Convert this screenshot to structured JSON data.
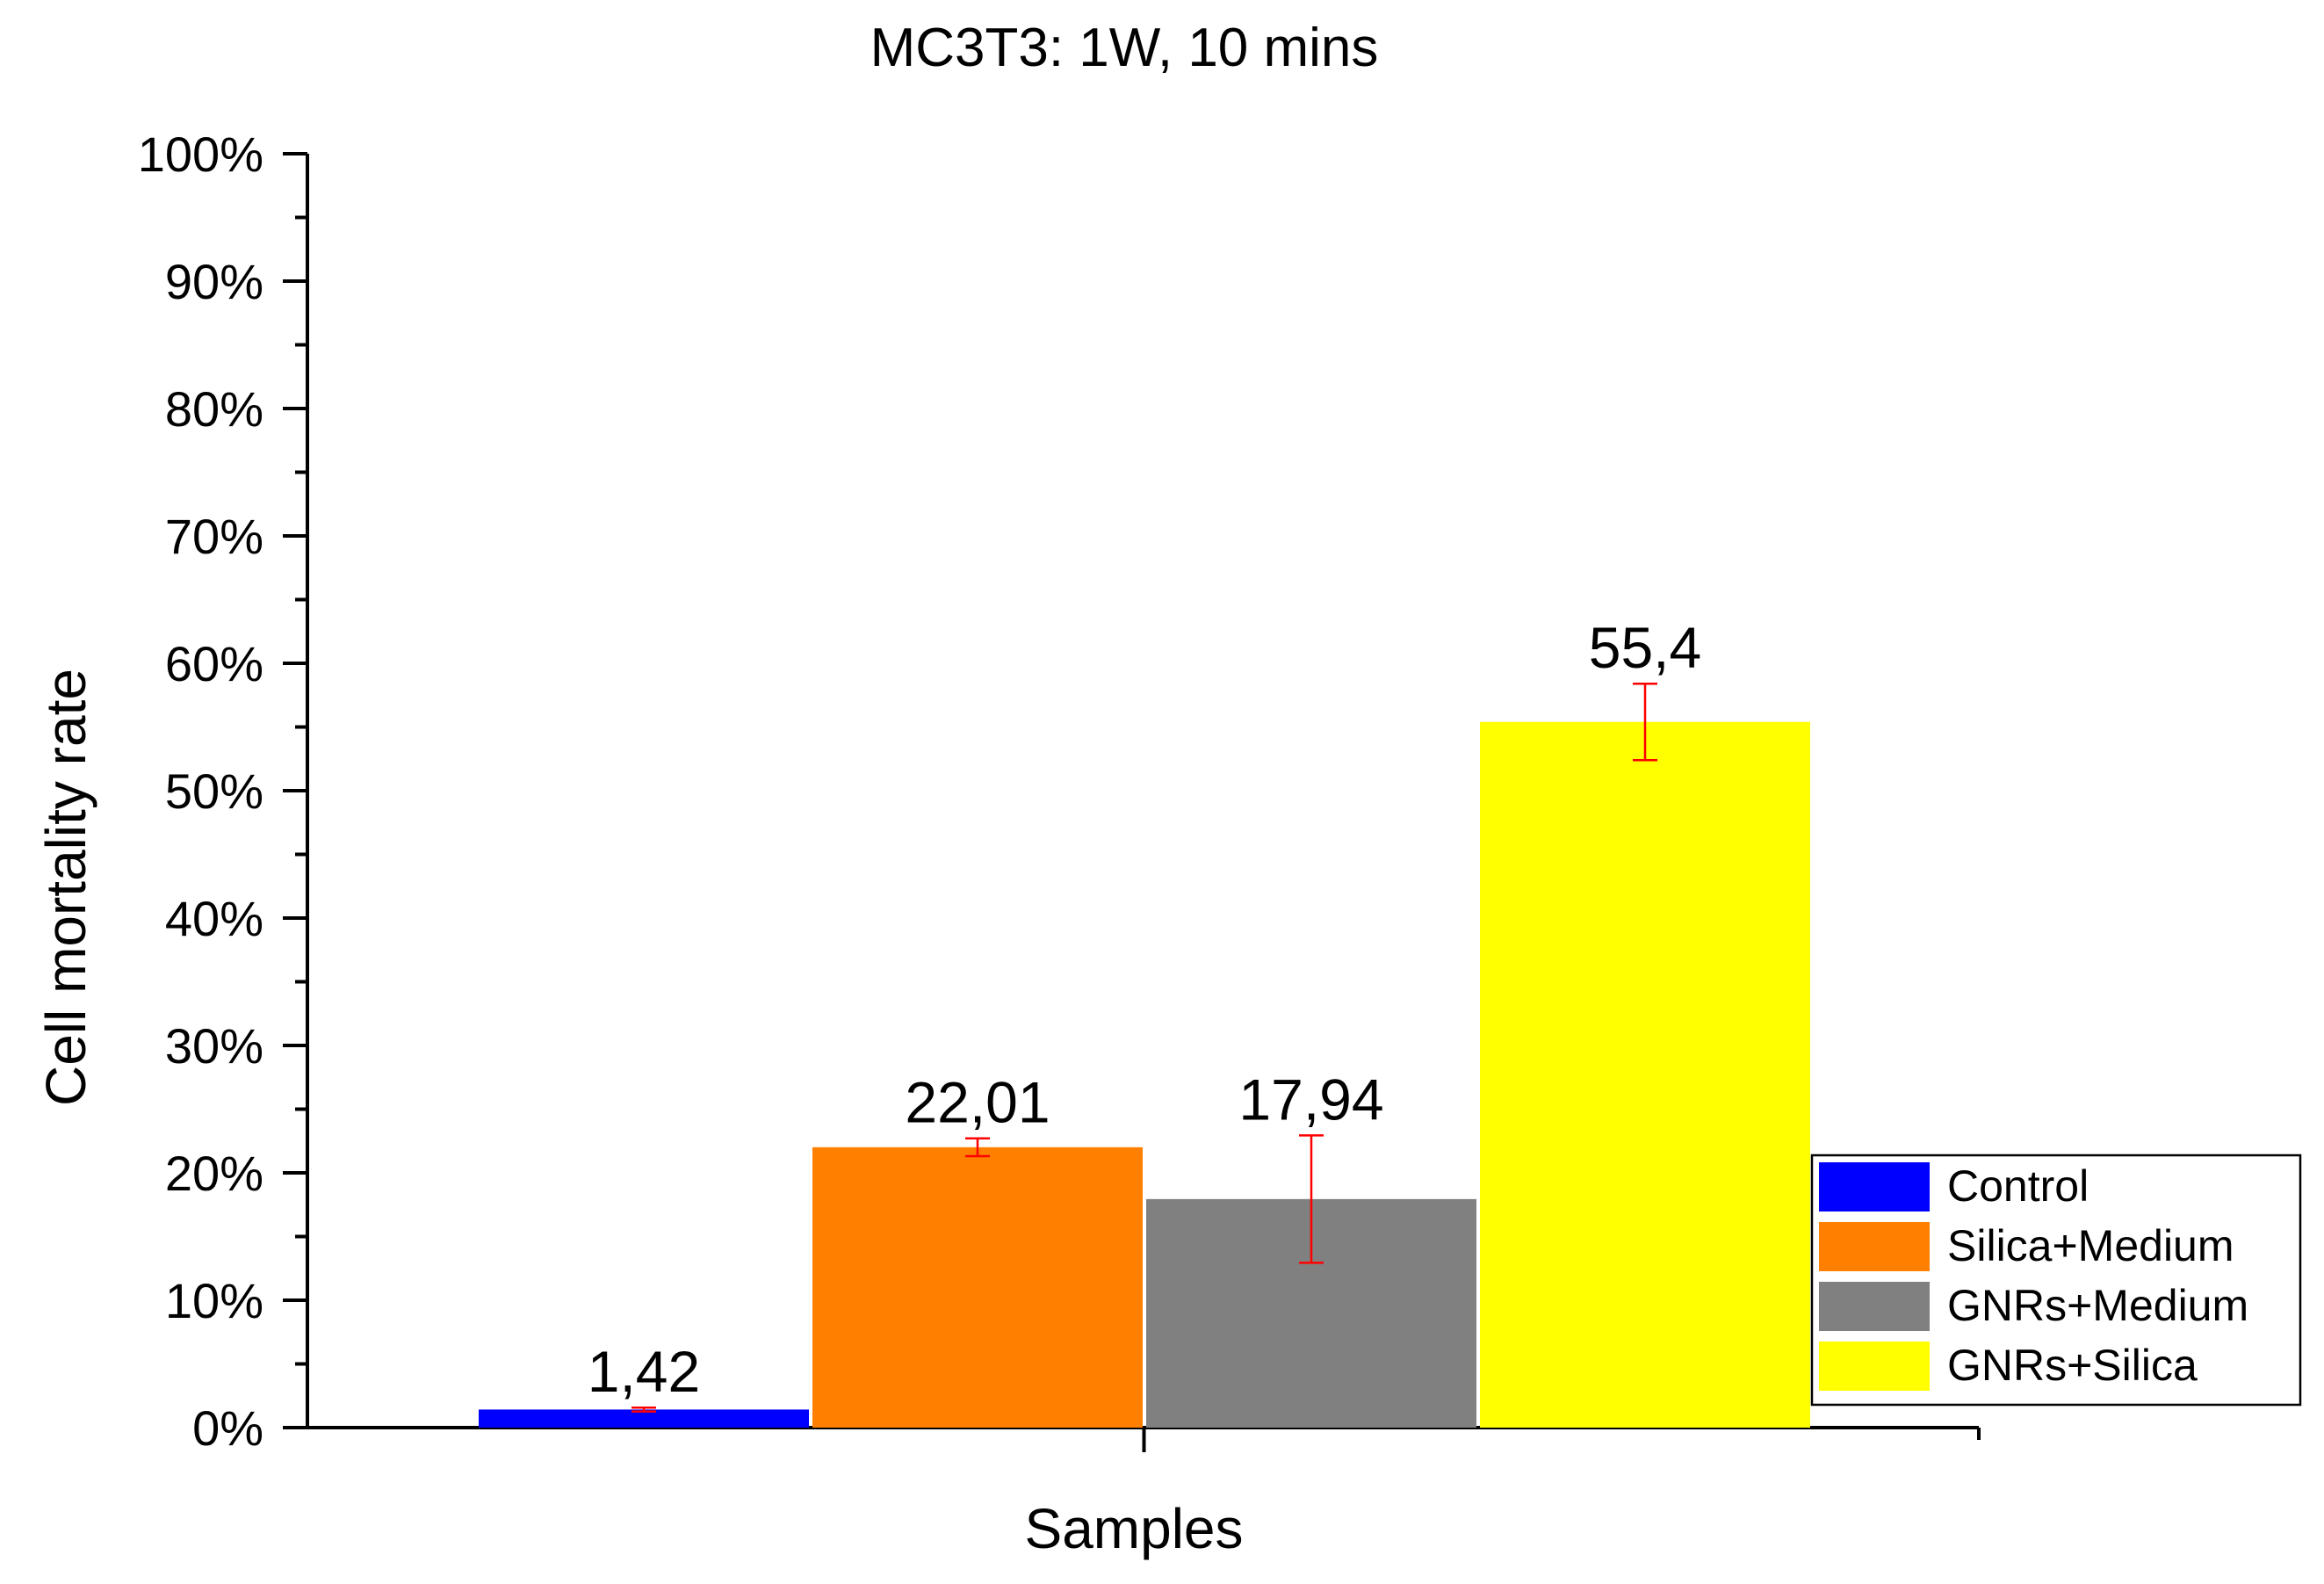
{
  "chart_data": {
    "type": "bar",
    "title": "MC3T3: 1W, 10 mins",
    "xlabel": "Samples",
    "ylabel": "Cell mortality rate",
    "ylim": [
      0,
      100
    ],
    "yticks": [
      "0%",
      "10%",
      "20%",
      "30%",
      "40%",
      "50%",
      "60%",
      "70%",
      "80%",
      "90%",
      "100%"
    ],
    "grid": false,
    "legend_position": "bottom-right",
    "series": [
      {
        "name": "Control",
        "value": 1.42,
        "label": "1,42",
        "error": 0.15,
        "color": "#0000FF"
      },
      {
        "name": "Silica+Medium",
        "value": 22.01,
        "label": "22,01",
        "error": 0.7,
        "color": "#FF8000"
      },
      {
        "name": "GNRs+Medium",
        "value": 17.94,
        "label": "17,94",
        "error": 5.0,
        "color": "#808080"
      },
      {
        "name": "GNRs+Silica",
        "value": 55.4,
        "label": "55,4",
        "error": 3.0,
        "color": "#FFFF00"
      }
    ],
    "error_bar_color": "#FF0000"
  }
}
